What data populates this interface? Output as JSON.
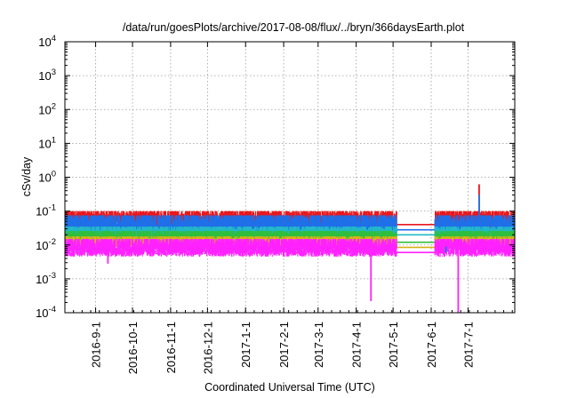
{
  "chart_data": {
    "type": "line",
    "title": "/data/run/goesPlots/archive/2017-08-08/flux/../bryn/366daysEarth.plot",
    "xlabel": "Coordinated Universal Time (UTC)",
    "ylabel": "cSv/day",
    "yscale": "log",
    "ylim": [
      0.0001,
      10000
    ],
    "xlim": [
      "2016-08-07",
      "2017-08-08"
    ],
    "grid": true,
    "legend": "none",
    "y_ticks": [
      {
        "value": 0.0001,
        "base": "10",
        "exp": "-4"
      },
      {
        "value": 0.001,
        "base": "10",
        "exp": "-3"
      },
      {
        "value": 0.01,
        "base": "10",
        "exp": "-2"
      },
      {
        "value": 0.1,
        "base": "10",
        "exp": "-1"
      },
      {
        "value": 1,
        "base": "10",
        "exp": "0"
      },
      {
        "value": 10,
        "base": "10",
        "exp": "1"
      },
      {
        "value": 100,
        "base": "10",
        "exp": "2"
      },
      {
        "value": 1000,
        "base": "10",
        "exp": "3"
      },
      {
        "value": 10000,
        "base": "10",
        "exp": "4"
      }
    ],
    "x_ticks": [
      {
        "date": "2016-09-01",
        "label": "2016-9-1"
      },
      {
        "date": "2016-10-01",
        "label": "2016-10-1"
      },
      {
        "date": "2016-11-01",
        "label": "2016-11-1"
      },
      {
        "date": "2016-12-01",
        "label": "2016-12-1"
      },
      {
        "date": "2017-01-01",
        "label": "2017-1-1"
      },
      {
        "date": "2017-02-01",
        "label": "2017-2-1"
      },
      {
        "date": "2017-03-01",
        "label": "2017-3-1"
      },
      {
        "date": "2017-04-01",
        "label": "2017-4-1"
      },
      {
        "date": "2017-05-01",
        "label": "2017-5-1"
      },
      {
        "date": "2017-06-01",
        "label": "2017-6-1"
      },
      {
        "date": "2017-07-01",
        "label": "2017-7-1"
      }
    ],
    "series": [
      {
        "color": "#e8181e",
        "low": 0.03,
        "high": 0.1,
        "gap_level": 0.04
      },
      {
        "color": "#1f6fe8",
        "low": 0.02,
        "high": 0.075,
        "gap_level": 0.028
      },
      {
        "color": "#22b8c8",
        "low": 0.014,
        "high": 0.035,
        "gap_level": 0.02
      },
      {
        "color": "#2fbf3a",
        "low": 0.011,
        "high": 0.026,
        "gap_level": 0.012
      },
      {
        "color": "#d6b21a",
        "low": 0.008,
        "high": 0.018,
        "gap_level": 0.0085
      },
      {
        "color": "#ff22ff",
        "low": 0.0045,
        "high": 0.015,
        "gap_level": 0.006
      }
    ],
    "data_gap": [
      "2017-05-04",
      "2017-06-04"
    ],
    "features": [
      {
        "date": "2016-09-11",
        "series": "#ff22ff",
        "value": 0.0028
      },
      {
        "date": "2017-04-13",
        "series": "#ff22ff",
        "value": 0.00022
      },
      {
        "date": "2017-06-13",
        "series": "#1f6fe8",
        "value": 0.009
      },
      {
        "date": "2017-06-23",
        "series": "#ff22ff",
        "value": 0.0001
      },
      {
        "date": "2017-07-10",
        "series": "#e8181e",
        "value": 0.62
      },
      {
        "date": "2017-07-10",
        "series": "#1f6fe8",
        "value": 0.3
      }
    ]
  }
}
